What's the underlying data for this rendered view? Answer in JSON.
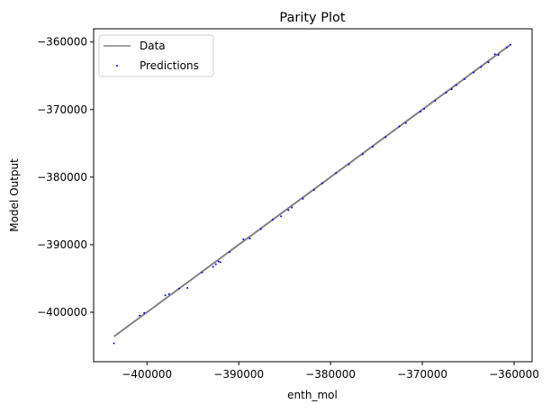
{
  "chart_data": {
    "type": "scatter",
    "title": "Parity Plot",
    "xlabel": "enth_mol",
    "ylabel": "Model Output",
    "xlim": [
      -405815,
      -358040
    ],
    "ylim": [
      -407330,
      -358040
    ],
    "xticks": [
      -400000,
      -390000,
      -380000,
      -370000,
      -360000
    ],
    "yticks": [
      -400000,
      -390000,
      -380000,
      -370000,
      -360000
    ],
    "xtick_labels": [
      "−400000",
      "−390000",
      "−380000",
      "−370000",
      "−360000"
    ],
    "ytick_labels": [
      "−400000",
      "−390000",
      "−380000",
      "−370000",
      "−360000"
    ],
    "grid": false,
    "legend": {
      "placement": "top-left",
      "entries": [
        "Data",
        "Predictions"
      ]
    },
    "series": [
      {
        "name": "Data",
        "kind": "line",
        "color": "#808080",
        "x": [
          -403600,
          -360400
        ],
        "y": [
          -403600,
          -360400
        ]
      },
      {
        "name": "Predictions",
        "kind": "scatter",
        "color": "#0000ff",
        "x": [
          -403600,
          -400800,
          -400300,
          -398000,
          -397600,
          -396500,
          -395600,
          -394000,
          -392800,
          -392500,
          -392200,
          -392000,
          -391000,
          -389500,
          -388800,
          -387600,
          -386300,
          -385400,
          -384600,
          -384200,
          -383000,
          -381800,
          -380900,
          -379400,
          -378000,
          -376500,
          -375400,
          -374000,
          -372500,
          -371800,
          -370200,
          -369800,
          -368600,
          -367400,
          -366800,
          -366300,
          -365400,
          -364400,
          -363600,
          -362800,
          -362100,
          -361700,
          -360800,
          -360400
        ],
        "y": [
          -404600,
          -400500,
          -400100,
          -397500,
          -397300,
          -396500,
          -396400,
          -394100,
          -393300,
          -392900,
          -392500,
          -392600,
          -391100,
          -389200,
          -389100,
          -387700,
          -386300,
          -385800,
          -384900,
          -384500,
          -383200,
          -381900,
          -380900,
          -379400,
          -378100,
          -376600,
          -375500,
          -374100,
          -372500,
          -372000,
          -370300,
          -369900,
          -368700,
          -367500,
          -367000,
          -366400,
          -365500,
          -364500,
          -363700,
          -363000,
          -361800,
          -361900,
          -360800,
          -360400
        ]
      }
    ]
  }
}
